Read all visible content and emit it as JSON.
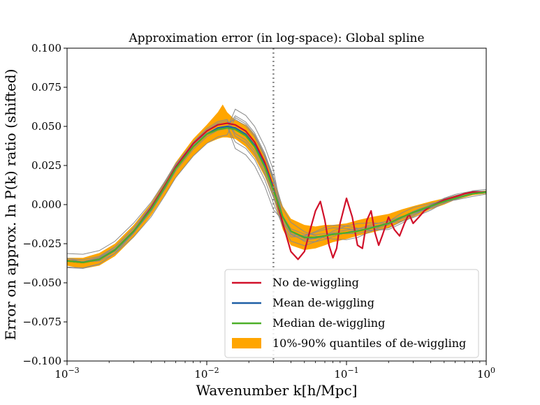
{
  "chart_data": {
    "type": "line",
    "title": "Approximation error (in log-space): Global spline",
    "xlabel": "Wavenumber k[h/Mpc]",
    "ylabel": "Error on approx. ln P(k) ratio (shifted)",
    "xscale": "log",
    "xlim": [
      0.001,
      1
    ],
    "ylim": [
      -0.1,
      0.1
    ],
    "x_tick_labels": [
      "10^-3",
      "10^-2",
      "10^-1",
      "10^0"
    ],
    "y_ticks": [
      -0.1,
      -0.075,
      -0.05,
      -0.025,
      0.0,
      0.025,
      0.05,
      0.075,
      0.1
    ],
    "y_tick_labels": [
      "−0.100",
      "−0.075",
      "−0.050",
      "−0.025",
      "0.000",
      "0.025",
      "0.050",
      "0.075",
      "0.100"
    ],
    "vline": {
      "x": 0.03,
      "style": "dotted",
      "color": "#888888"
    },
    "legend": {
      "position": "lower-right",
      "entries": [
        {
          "label": "No de-wiggling",
          "color": "#d1102a",
          "kind": "line"
        },
        {
          "label": "Mean de-wiggling",
          "color": "#1f5fa6",
          "kind": "line"
        },
        {
          "label": "Median de-wiggling",
          "color": "#4caf28",
          "kind": "line"
        },
        {
          "label": "10%-90% quantiles of de-wiggling",
          "color": "#ffa500",
          "kind": "patch"
        }
      ]
    },
    "series": [
      {
        "name": "No de-wiggling",
        "color": "#d1102a",
        "x": [
          0.001,
          0.0013,
          0.0017,
          0.0022,
          0.003,
          0.004,
          0.005,
          0.006,
          0.008,
          0.01,
          0.012,
          0.014,
          0.016,
          0.019,
          0.022,
          0.026,
          0.03,
          0.035,
          0.04,
          0.045,
          0.05,
          0.055,
          0.06,
          0.065,
          0.07,
          0.075,
          0.08,
          0.085,
          0.09,
          0.1,
          0.11,
          0.12,
          0.13,
          0.14,
          0.15,
          0.16,
          0.17,
          0.18,
          0.2,
          0.22,
          0.24,
          0.26,
          0.28,
          0.3,
          0.33,
          0.36,
          0.4,
          0.45,
          0.5,
          0.6,
          0.7,
          0.8,
          1.0
        ],
        "y": [
          -0.036,
          -0.037,
          -0.035,
          -0.029,
          -0.017,
          -0.002,
          0.012,
          0.024,
          0.039,
          0.047,
          0.051,
          0.052,
          0.051,
          0.047,
          0.04,
          0.027,
          0.011,
          -0.012,
          -0.03,
          -0.035,
          -0.03,
          -0.016,
          -0.004,
          0.002,
          -0.01,
          -0.026,
          -0.034,
          -0.028,
          -0.012,
          0.004,
          -0.008,
          -0.026,
          -0.028,
          -0.01,
          -0.004,
          -0.018,
          -0.026,
          -0.02,
          -0.008,
          -0.016,
          -0.02,
          -0.012,
          -0.006,
          -0.012,
          -0.008,
          -0.004,
          -0.001,
          0.001,
          0.003,
          0.005,
          0.007,
          0.008,
          0.008
        ]
      },
      {
        "name": "Mean de-wiggling",
        "color": "#1f5fa6",
        "x": [
          0.001,
          0.0013,
          0.0017,
          0.0022,
          0.003,
          0.004,
          0.005,
          0.006,
          0.008,
          0.01,
          0.012,
          0.014,
          0.016,
          0.019,
          0.022,
          0.026,
          0.03,
          0.035,
          0.04,
          0.05,
          0.06,
          0.07,
          0.08,
          0.1,
          0.12,
          0.15,
          0.2,
          0.25,
          0.3,
          0.4,
          0.5,
          0.6,
          0.8,
          1.0
        ],
        "y": [
          -0.036,
          -0.037,
          -0.035,
          -0.029,
          -0.017,
          -0.003,
          0.011,
          0.023,
          0.037,
          0.045,
          0.049,
          0.05,
          0.049,
          0.045,
          0.038,
          0.025,
          0.01,
          -0.008,
          -0.017,
          -0.021,
          -0.021,
          -0.02,
          -0.019,
          -0.018,
          -0.017,
          -0.015,
          -0.012,
          -0.008,
          -0.005,
          -0.001,
          0.002,
          0.004,
          0.007,
          0.008
        ]
      },
      {
        "name": "Median de-wiggling",
        "color": "#4caf28",
        "x": [
          0.001,
          0.0013,
          0.0017,
          0.0022,
          0.003,
          0.004,
          0.005,
          0.006,
          0.008,
          0.01,
          0.012,
          0.014,
          0.016,
          0.019,
          0.022,
          0.026,
          0.03,
          0.035,
          0.04,
          0.05,
          0.06,
          0.07,
          0.08,
          0.1,
          0.12,
          0.15,
          0.2,
          0.25,
          0.3,
          0.4,
          0.5,
          0.6,
          0.8,
          1.0
        ],
        "y": [
          -0.036,
          -0.037,
          -0.035,
          -0.029,
          -0.017,
          -0.003,
          0.011,
          0.023,
          0.037,
          0.045,
          0.048,
          0.049,
          0.048,
          0.044,
          0.037,
          0.024,
          0.009,
          -0.008,
          -0.017,
          -0.021,
          -0.021,
          -0.02,
          -0.019,
          -0.018,
          -0.017,
          -0.015,
          -0.012,
          -0.008,
          -0.005,
          -0.001,
          0.002,
          0.004,
          0.007,
          0.008
        ]
      },
      {
        "name": "10%-90% quantiles of de-wiggling",
        "color": "#ffa500",
        "kind": "band",
        "x": [
          0.001,
          0.0013,
          0.0017,
          0.0022,
          0.003,
          0.004,
          0.005,
          0.006,
          0.008,
          0.01,
          0.012,
          0.013,
          0.014,
          0.016,
          0.019,
          0.022,
          0.026,
          0.03,
          0.035,
          0.04,
          0.05,
          0.06,
          0.07,
          0.08,
          0.1,
          0.12,
          0.15,
          0.2,
          0.25,
          0.3,
          0.4,
          0.5,
          0.6,
          0.8,
          1.0
        ],
        "lower": [
          -0.039,
          -0.041,
          -0.039,
          -0.033,
          -0.021,
          -0.007,
          0.006,
          0.017,
          0.031,
          0.039,
          0.042,
          0.043,
          0.043,
          0.042,
          0.037,
          0.03,
          0.018,
          0.004,
          -0.016,
          -0.026,
          -0.029,
          -0.028,
          -0.026,
          -0.024,
          -0.022,
          -0.02,
          -0.018,
          -0.015,
          -0.011,
          -0.008,
          -0.003,
          0.0,
          0.003,
          0.006,
          0.007
        ],
        "upper": [
          -0.034,
          -0.034,
          -0.031,
          -0.025,
          -0.013,
          0.001,
          0.015,
          0.027,
          0.042,
          0.051,
          0.059,
          0.064,
          0.059,
          0.054,
          0.051,
          0.045,
          0.032,
          0.016,
          -0.001,
          -0.009,
          -0.013,
          -0.014,
          -0.013,
          -0.013,
          -0.012,
          -0.01,
          -0.008,
          -0.006,
          -0.003,
          -0.001,
          0.002,
          0.004,
          0.006,
          0.008,
          0.009
        ]
      }
    ]
  }
}
